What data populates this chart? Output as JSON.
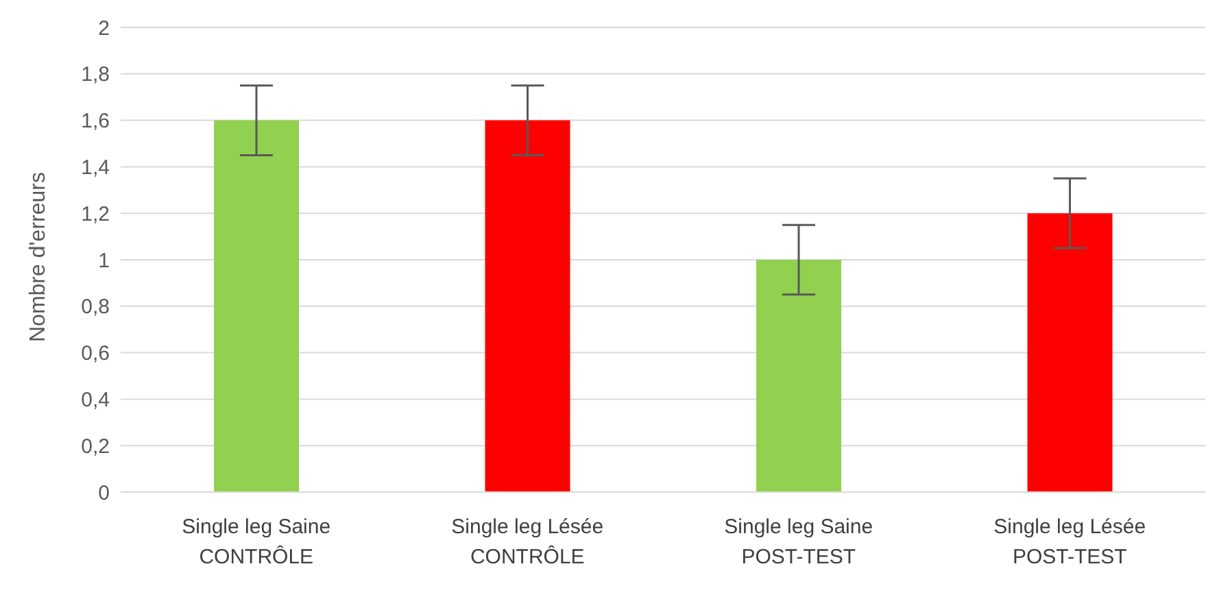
{
  "chart_data": {
    "type": "bar",
    "ylabel": "Nombre d'erreurs",
    "categories": [
      "Single leg Saine\nCONTRÔLE",
      "Single leg Lésée\nCONTRÔLE",
      "Single leg Saine\nPOST-TEST",
      "Single leg Lésée\nPOST-TEST"
    ],
    "values": [
      1.6,
      1.6,
      1.0,
      1.2
    ],
    "errors": [
      0.15,
      0.15,
      0.15,
      0.15
    ],
    "colors": [
      "#92d050",
      "#ff0000",
      "#92d050",
      "#ff0000"
    ],
    "ylim": [
      0,
      2
    ],
    "yticks": [
      0,
      {
        "value": 0.2,
        "label": "0,2"
      },
      {
        "value": 0.4,
        "label": "0,4"
      },
      {
        "value": 0.6,
        "label": "0,6"
      },
      {
        "value": 0.8,
        "label": "0,8"
      },
      1,
      {
        "value": 1.2,
        "label": "1,2"
      },
      {
        "value": 1.4,
        "label": "1,4"
      },
      {
        "value": 1.6,
        "label": "1,6"
      },
      {
        "value": 1.8,
        "label": "1,8"
      },
      2
    ],
    "grid": "y"
  }
}
